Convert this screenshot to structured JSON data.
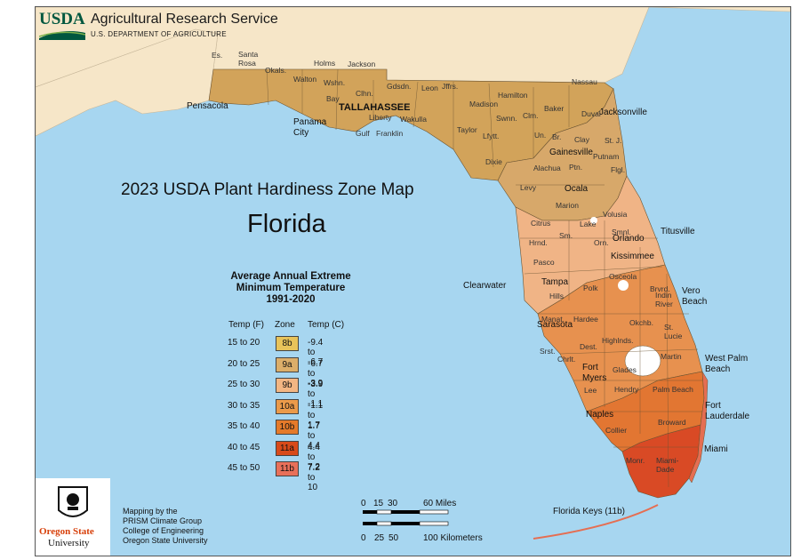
{
  "header": {
    "logo_text": "USDA",
    "agency": "Agricultural Research Service",
    "department": "U.S. DEPARTMENT OF AGRICULTURE"
  },
  "map_title": "2023 USDA Plant Hardiness Zone Map",
  "state": "Florida",
  "legend": {
    "title_line1": "Average Annual Extreme",
    "title_line2": "Minimum Temperature",
    "title_line3": "1991-2020",
    "col_f": "Temp (F)",
    "col_zone": "Zone",
    "col_c": "Temp (C)",
    "rows": [
      {
        "f": "15 to 20",
        "zone": "8b",
        "c": "-9.4 to -6.7",
        "color": "#e8c35a"
      },
      {
        "f": "20 to 25",
        "zone": "9a",
        "c": "-6.7 to -3.9",
        "color": "#dcae6a"
      },
      {
        "f": "25 to 30",
        "zone": "9b",
        "c": "-3.9 to -1.1",
        "color": "#f3b683"
      },
      {
        "f": "30 to 35",
        "zone": "10a",
        "c": "-1.1 to 1.7",
        "color": "#eb9a4a"
      },
      {
        "f": "35 to 40",
        "zone": "10b",
        "c": "1.7 to 4.4",
        "color": "#e57a2a"
      },
      {
        "f": "40 to 45",
        "zone": "11a",
        "c": "4.4 to 7.2",
        "color": "#d84a1a"
      },
      {
        "f": "45 to 50",
        "zone": "11b",
        "c": "7.2 to 10",
        "color": "#e8705a"
      }
    ]
  },
  "cities": {
    "tallahassee": "TALLAHASSEE",
    "pensacola": "Pensacola",
    "panama_city": "Panama\nCity",
    "jacksonville": "Jacksonville",
    "gainesville": "Gainesville",
    "ocala": "Ocala",
    "orlando": "Orlando",
    "titusville": "Titusville",
    "kissimmee": "Kissimmee",
    "clearwater": "Clearwater",
    "tampa": "Tampa",
    "vero_beach": "Vero\nBeach",
    "sarasota": "Sarasota",
    "west_palm_beach": "West Palm\nBeach",
    "fort_myers": "Fort\nMyers",
    "fort_lauderdale": "Fort\nLauderdale",
    "naples": "Naples",
    "miami": "Miami",
    "florida_keys": "Florida Keys (11b)"
  },
  "counties": [
    "Es.",
    "Santa\nRosa",
    "Okals.",
    "Holms",
    "Jackson",
    "Walton",
    "Wshn.",
    "Bay",
    "Clhn.",
    "Gdsdn.",
    "Leon",
    "Jffrs.",
    "Hamilton",
    "Nassau",
    "Madison",
    "Swnn.",
    "Baker",
    "Duval",
    "Liberty",
    "Wakulla",
    "Taylor",
    "Clm.",
    "Un.",
    "Br.",
    "Clay",
    "St. J.",
    "Gulf",
    "Franklin",
    "Lfytt.",
    "Putnam",
    "Dixie",
    "Alachua",
    "Ptn.",
    "Flgl.",
    "Levy",
    "Marion",
    "Volusia",
    "Citrus",
    "Lake",
    "Smnl.",
    "Hrnd.",
    "Sm.",
    "Orn.",
    "Pasco",
    "Osceola",
    "Brvrd.",
    "Polk",
    "Hills",
    "Indin\nRiver",
    "Manat.",
    "Hardee",
    "Okchb.",
    "St.\nLucie",
    "Dest.",
    "Highlnds.",
    "Martin",
    "Srst.",
    "Chrlt.",
    "Glades",
    "Palm Beach",
    "Lee",
    "Hendry",
    "Broward",
    "Collier",
    "Monr.",
    "Miami-\nDade"
  ],
  "credits": {
    "osu_name": "Oregon State",
    "osu_univ": "University",
    "text": "Mapping by the\nPRISM Climate Group\nCollege of Engineering\nOregon State University"
  },
  "scale": {
    "miles": [
      "0",
      "15",
      "30",
      "60 Miles"
    ],
    "km": [
      "0",
      "25",
      "50",
      "100 Kilometers"
    ]
  },
  "colors": {
    "water": "#a7d6f0",
    "land_other": "#f6e6c8",
    "zone_8b": "#d2a35a",
    "zone_9a": "#d7a86a",
    "zone_9b": "#f0b486",
    "zone_10a": "#e7914f",
    "zone_10b": "#e27632",
    "zone_11a": "#d94a25",
    "zone_11b": "#e56e52"
  }
}
